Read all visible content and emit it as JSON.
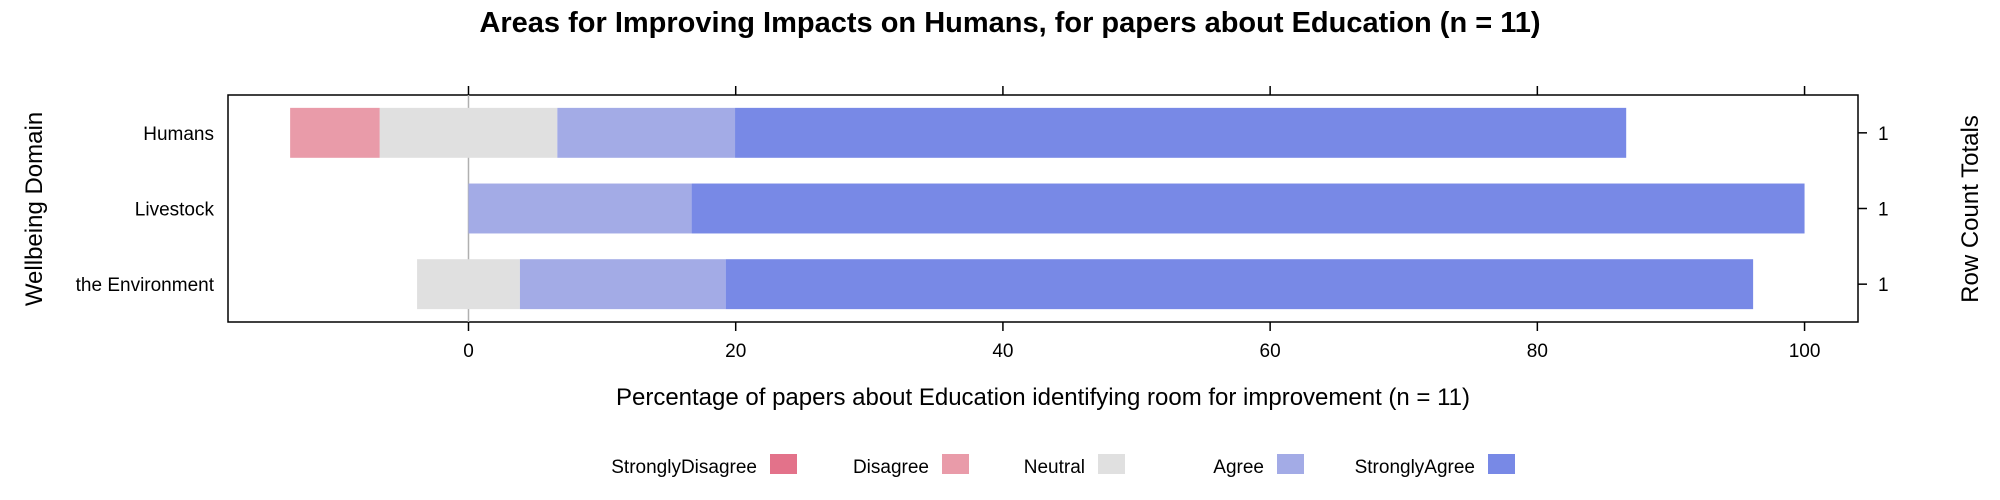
{
  "chart_data": {
    "type": "bar",
    "subtype": "diverging-stacked-likert",
    "orientation": "horizontal",
    "title": "Areas for Improving Impacts on Humans, for papers about Education (n = 11)",
    "xlabel": "Percentage of papers about Education identifying room for improvement (n = 11)",
    "ylabel": "Wellbeing Domain",
    "ylabel_right": "Row Count Totals",
    "xlim": [
      -18,
      104
    ],
    "xticks": [
      0,
      20,
      40,
      60,
      80,
      100
    ],
    "grid": false,
    "legend_position": "bottom",
    "categories": [
      "Humans",
      "Livestock",
      "the Environment"
    ],
    "row_totals": [
      "1",
      "1",
      "1"
    ],
    "series": [
      {
        "name": "StronglyDisagree",
        "color": "#e3728a",
        "values": [
          0,
          0,
          0
        ]
      },
      {
        "name": "Disagree",
        "color": "#e99ba9",
        "values": [
          6.7,
          0,
          0
        ]
      },
      {
        "name": "Neutral",
        "color": "#e0e0e0",
        "values": [
          13.3,
          0,
          7.7
        ]
      },
      {
        "name": "Agree",
        "color": "#a3abe6",
        "values": [
          13.3,
          16.7,
          15.4
        ]
      },
      {
        "name": "StronglyAgree",
        "color": "#7889e6",
        "values": [
          66.7,
          83.3,
          76.9
        ]
      }
    ],
    "neutral_series": "Neutral"
  }
}
